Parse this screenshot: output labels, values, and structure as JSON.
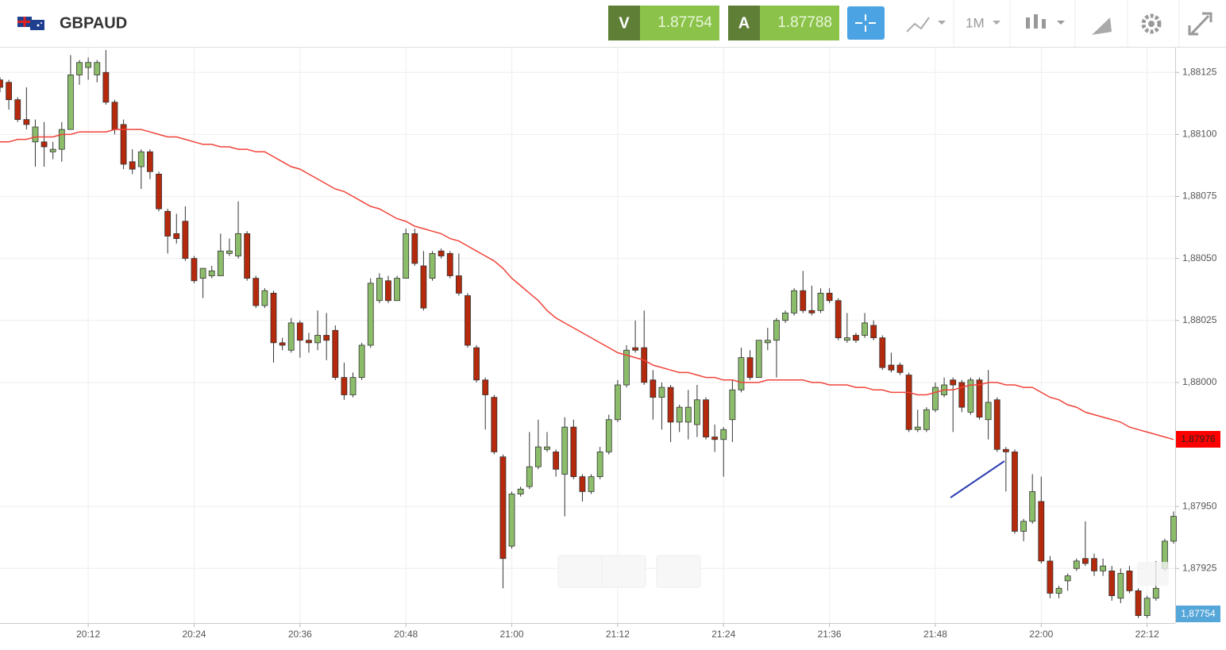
{
  "header": {
    "symbol": "GBPAUD",
    "sell_label": "V",
    "sell_price": "1.87754",
    "buy_label": "A",
    "buy_price": "1.87788",
    "timeframe": "1M"
  },
  "chart_data": {
    "type": "candlestick",
    "up_color": "#8cbd6a",
    "down_color": "#b5290d",
    "ma_color": "#f0433a",
    "grid": true,
    "ylim": [
      1.87903,
      1.88135
    ],
    "yticks": [
      {
        "value": 1.88125,
        "label": "1,88125"
      },
      {
        "value": 1.881,
        "label": "1,88100"
      },
      {
        "value": 1.88075,
        "label": "1,88075"
      },
      {
        "value": 1.8805,
        "label": "1,88050"
      },
      {
        "value": 1.88025,
        "label": "1,88025"
      },
      {
        "value": 1.88,
        "label": "1,88000"
      },
      {
        "value": 1.8795,
        "label": "1,87950"
      },
      {
        "value": 1.87925,
        "label": "1,87925"
      }
    ],
    "price_tags": [
      "1,87976",
      "1,87754"
    ],
    "categories": [
      null,
      null,
      null,
      null,
      null,
      null,
      null,
      null,
      null,
      null,
      "20:12",
      null,
      null,
      null,
      null,
      null,
      null,
      null,
      null,
      null,
      null,
      null,
      "20:24",
      null,
      null,
      null,
      null,
      null,
      null,
      null,
      null,
      null,
      null,
      null,
      "20:36",
      null,
      null,
      null,
      null,
      null,
      null,
      null,
      null,
      null,
      null,
      null,
      "20:48",
      null,
      null,
      null,
      null,
      null,
      null,
      null,
      null,
      null,
      null,
      null,
      "21:00",
      null,
      null,
      null,
      null,
      null,
      null,
      null,
      null,
      null,
      null,
      null,
      "21:12",
      null,
      null,
      null,
      null,
      null,
      null,
      null,
      null,
      null,
      null,
      null,
      "21:24",
      null,
      null,
      null,
      null,
      null,
      null,
      null,
      null,
      null,
      null,
      null,
      "21:36",
      null,
      null,
      null,
      null,
      null,
      null,
      null,
      null,
      null,
      null,
      null,
      "21:48",
      null,
      null,
      null,
      null,
      null,
      null,
      null,
      null,
      null,
      null,
      null,
      "22:00",
      null,
      null,
      null,
      null,
      null,
      null,
      null,
      null,
      null,
      null,
      null,
      "22:12",
      null,
      null,
      null
    ],
    "open": [
      1.88122,
      1.88121,
      1.88114,
      1.88106,
      1.88097,
      1.88097,
      1.88093,
      1.88094,
      1.88102,
      1.88124,
      1.88127,
      1.88124,
      1.88125,
      1.88113,
      1.88104,
      1.88089,
      1.88087,
      1.88093,
      1.88084,
      1.88069,
      1.8806,
      1.88065,
      1.8805,
      1.88042,
      1.88043,
      1.88043,
      1.88052,
      1.88051,
      1.8806,
      1.88042,
      1.88031,
      1.88036,
      1.88016,
      1.88013,
      1.88024,
      1.88017,
      1.88016,
      1.88019,
      1.88021,
      1.88002,
      1.87995,
      1.88002,
      1.88015,
      1.88033,
      1.88041,
      1.88033,
      1.88042,
      1.8806,
      1.88047,
      1.88042,
      1.88053,
      1.88052,
      1.88043,
      1.88035,
      1.88014,
      1.88001,
      1.87994,
      1.8797,
      1.87934,
      1.87955,
      1.87958,
      1.87966,
      1.87973,
      1.87972,
      1.87963,
      1.87982,
      1.87962,
      1.87956,
      1.87962,
      1.87972,
      1.87985,
      1.87999,
      1.88014,
      1.88014,
      1.88001,
      1.87994,
      1.87998,
      1.87984,
      1.87984,
      1.87983,
      1.87993,
      1.87978,
      1.87977,
      1.87985,
      1.87997,
      1.8801,
      1.88002,
      1.88016,
      1.88017,
      1.88025,
      1.88028,
      1.88037,
      1.88029,
      1.88029,
      1.88036,
      1.88033,
      1.88017,
      1.88019,
      1.88019,
      1.88023,
      1.88018,
      1.88007,
      1.88007,
      1.88003,
      1.87981,
      1.87981,
      1.87989,
      1.87995,
      1.88001,
      1.88,
      1.87988,
      1.88001,
      1.87985,
      1.87993,
      1.87973,
      1.87972,
      1.8794,
      1.87944,
      1.87952,
      1.87928,
      1.87915,
      1.8792,
      1.87925,
      1.87929,
      1.87929,
      1.87924,
      1.87924,
      1.87913,
      1.87924,
      1.87916,
      1.87906,
      1.87913,
      1.87925,
      1.87936
    ],
    "high": [
      1.88123,
      1.88122,
      1.88115,
      1.88119,
      1.88106,
      1.88105,
      1.88097,
      1.88105,
      1.88132,
      1.8813,
      1.88131,
      1.8813,
      1.88134,
      1.88114,
      1.88106,
      1.88094,
      1.88094,
      1.88094,
      1.88085,
      1.8807,
      1.88068,
      1.88071,
      1.88051,
      1.88046,
      1.88047,
      1.8806,
      1.88058,
      1.88073,
      1.88061,
      1.88043,
      1.88038,
      1.88037,
      1.88018,
      1.88026,
      1.88025,
      1.8802,
      1.88029,
      1.88028,
      1.88023,
      1.88008,
      1.88004,
      1.88016,
      1.88042,
      1.88044,
      1.88043,
      1.88043,
      1.88062,
      1.88062,
      1.88053,
      1.88053,
      1.88054,
      1.88053,
      1.88052,
      1.88036,
      1.88015,
      1.88002,
      1.87995,
      1.87971,
      1.87956,
      1.87958,
      1.8798,
      1.87985,
      1.8798,
      1.87973,
      1.87986,
      1.87985,
      1.87963,
      1.87963,
      1.87974,
      1.87987,
      1.88001,
      1.88015,
      1.88025,
      1.88029,
      1.88005,
      1.88,
      1.87999,
      1.87991,
      1.87997,
      1.87999,
      1.87994,
      1.87983,
      1.87982,
      1.88001,
      1.88014,
      1.88013,
      1.88017,
      1.88022,
      1.88026,
      1.88029,
      1.88038,
      1.88045,
      1.88039,
      1.88038,
      1.88038,
      1.88034,
      1.88028,
      1.8802,
      1.88028,
      1.88025,
      1.88019,
      1.88012,
      1.88008,
      1.88004,
      1.87989,
      1.8799,
      1.88,
      1.88002,
      1.88002,
      1.88001,
      1.88002,
      1.88002,
      1.88005,
      1.87994,
      1.87974,
      1.87973,
      1.87945,
      1.87963,
      1.87962,
      1.8793,
      1.87918,
      1.87923,
      1.87929,
      1.87944,
      1.87931,
      1.87929,
      1.87926,
      1.87925,
      1.87926,
      1.87917,
      1.87914,
      1.87928,
      1.87937,
      1.87948
    ],
    "low": [
      1.88117,
      1.8811,
      1.88105,
      1.88102,
      1.88087,
      1.88087,
      1.8809,
      1.88089,
      1.88102,
      1.8812,
      1.88122,
      1.88121,
      1.88112,
      1.881,
      1.88086,
      1.88084,
      1.88078,
      1.88082,
      1.88069,
      1.88052,
      1.88056,
      1.88049,
      1.8804,
      1.88034,
      1.88042,
      1.88043,
      1.88051,
      1.8805,
      1.88041,
      1.8803,
      1.8803,
      1.88008,
      1.88013,
      1.88012,
      1.8801,
      1.88012,
      1.88013,
      1.88009,
      1.88001,
      1.87993,
      1.87994,
      1.88001,
      1.88014,
      1.88032,
      1.88032,
      1.88033,
      1.88042,
      1.88047,
      1.88029,
      1.88041,
      1.8805,
      1.88042,
      1.88035,
      1.88014,
      1.88,
      1.87981,
      1.87971,
      1.87917,
      1.87933,
      1.87954,
      1.87957,
      1.87965,
      1.87972,
      1.87962,
      1.87946,
      1.87961,
      1.87952,
      1.87955,
      1.87961,
      1.87971,
      1.87984,
      1.87998,
      1.88012,
      1.87999,
      1.87985,
      1.87981,
      1.87976,
      1.8798,
      1.87977,
      1.87978,
      1.87977,
      1.87972,
      1.87962,
      1.87976,
      1.87996,
      1.88001,
      1.88002,
      1.88013,
      1.88002,
      1.88024,
      1.88027,
      1.88028,
      1.88027,
      1.88028,
      1.88032,
      1.88017,
      1.88016,
      1.88016,
      1.88018,
      1.88017,
      1.88005,
      1.88004,
      1.88003,
      1.8798,
      1.8798,
      1.8798,
      1.87988,
      1.87994,
      1.8798,
      1.87988,
      1.87987,
      1.87985,
      1.87977,
      1.87972,
      1.87956,
      1.87939,
      1.87936,
      1.87943,
      1.87927,
      1.87913,
      1.87913,
      1.87916,
      1.87924,
      1.87926,
      1.87922,
      1.87922,
      1.87912,
      1.87911,
      1.87915,
      1.87905,
      1.87905,
      1.87912,
      1.87924,
      1.87935
    ],
    "close": [
      1.88119,
      1.88114,
      1.88106,
      1.88104,
      1.88103,
      1.88095,
      1.88094,
      1.88102,
      1.88124,
      1.88129,
      1.88129,
      1.88129,
      1.88113,
      1.88102,
      1.88088,
      1.88086,
      1.88093,
      1.88085,
      1.8807,
      1.88059,
      1.88058,
      1.8805,
      1.88041,
      1.88046,
      1.88045,
      1.88053,
      1.88053,
      1.8806,
      1.88042,
      1.88031,
      1.88037,
      1.88016,
      1.88015,
      1.88024,
      1.88017,
      1.88016,
      1.88019,
      1.88017,
      1.88002,
      1.87995,
      1.88002,
      1.88015,
      1.8804,
      1.88042,
      1.88033,
      1.88042,
      1.8806,
      1.88048,
      1.8803,
      1.88052,
      1.88051,
      1.88043,
      1.88036,
      1.88015,
      1.88001,
      1.87995,
      1.87972,
      1.87929,
      1.87955,
      1.87957,
      1.87966,
      1.87974,
      1.87974,
      1.87965,
      1.87982,
      1.87962,
      1.87956,
      1.87962,
      1.87972,
      1.87985,
      1.87999,
      1.88013,
      1.88013,
      1.88,
      1.87994,
      1.87998,
      1.87984,
      1.8799,
      1.8799,
      1.87993,
      1.87978,
      1.87977,
      1.87981,
      1.87997,
      1.8801,
      1.88002,
      1.88017,
      1.88017,
      1.88025,
      1.88028,
      1.88037,
      1.88029,
      1.88028,
      1.88036,
      1.88033,
      1.88018,
      1.88018,
      1.88017,
      1.88024,
      1.88018,
      1.88006,
      1.88005,
      1.88004,
      1.87981,
      1.87982,
      1.87989,
      1.87998,
      1.87999,
      1.87999,
      1.8799,
      1.88001,
      1.87986,
      1.87992,
      1.87973,
      1.87972,
      1.8794,
      1.87944,
      1.87956,
      1.87928,
      1.87915,
      1.87917,
      1.87922,
      1.87928,
      1.87927,
      1.87924,
      1.87926,
      1.87914,
      1.87923,
      1.87916,
      1.87906,
      1.87913,
      1.87917,
      1.87936,
      1.87946
    ],
    "ma": [
      1.88097,
      1.88097,
      1.88098,
      1.88098,
      1.88099,
      1.88099,
      1.88099,
      1.881,
      1.881,
      1.88101,
      1.88101,
      1.88101,
      1.88101,
      1.88102,
      1.88102,
      1.88102,
      1.88102,
      1.88101,
      1.881,
      1.88099,
      1.88099,
      1.88098,
      1.88097,
      1.88096,
      1.88096,
      1.88095,
      1.88095,
      1.88094,
      1.88094,
      1.88093,
      1.88093,
      1.88091,
      1.88089,
      1.88087,
      1.88086,
      1.88084,
      1.88082,
      1.8808,
      1.88078,
      1.88077,
      1.88075,
      1.88073,
      1.88071,
      1.8807,
      1.88068,
      1.88066,
      1.88065,
      1.88063,
      1.88062,
      1.88061,
      1.8806,
      1.88058,
      1.88057,
      1.88055,
      1.88053,
      1.88051,
      1.88049,
      1.88046,
      1.88042,
      1.88039,
      1.88036,
      1.88033,
      1.88029,
      1.88026,
      1.88024,
      1.88022,
      1.8802,
      1.88018,
      1.88016,
      1.88014,
      1.88012,
      1.88011,
      1.8801,
      1.88009,
      1.88007,
      1.88006,
      1.88005,
      1.88004,
      1.88004,
      1.88003,
      1.88002,
      1.88002,
      1.88001,
      1.88001,
      1.88,
      1.88,
      1.88,
      1.88001,
      1.88001,
      1.88001,
      1.88001,
      1.88001,
      1.88,
      1.88,
      1.87999,
      1.87999,
      1.87999,
      1.87998,
      1.87998,
      1.87997,
      1.87997,
      1.87996,
      1.87996,
      1.87996,
      1.87995,
      1.87995,
      1.87996,
      1.87997,
      1.87997,
      1.87998,
      1.87999,
      1.87999,
      1.88,
      1.88,
      1.87999,
      1.87999,
      1.87998,
      1.87998,
      1.87996,
      1.87994,
      1.87993,
      1.87991,
      1.8799,
      1.87988,
      1.87987,
      1.87986,
      1.87985,
      1.87984,
      1.87982,
      1.87981,
      1.8798,
      1.87979,
      1.87978,
      1.87977
    ]
  }
}
